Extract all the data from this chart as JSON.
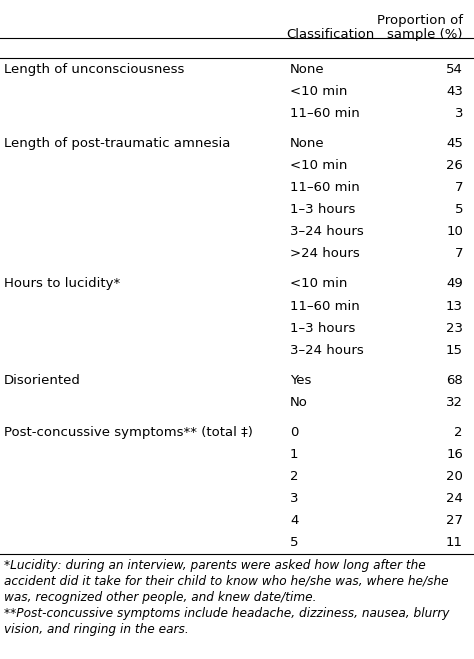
{
  "header_col2": "Classification",
  "header_col3_line1": "Proportion of",
  "header_col3_line2": "sample (%)",
  "rows": [
    {
      "label": "Length of unconsciousness",
      "classification": "None",
      "value": "54",
      "is_group_start": true
    },
    {
      "label": "",
      "classification": "<10 min",
      "value": "43",
      "is_group_start": false
    },
    {
      "label": "",
      "classification": "11–60 min",
      "value": "3",
      "is_group_start": false
    },
    {
      "label": "Length of post-traumatic amnesia",
      "classification": "None",
      "value": "45",
      "is_group_start": true
    },
    {
      "label": "",
      "classification": "<10 min",
      "value": "26",
      "is_group_start": false
    },
    {
      "label": "",
      "classification": "11–60 min",
      "value": "7",
      "is_group_start": false
    },
    {
      "label": "",
      "classification": "1–3 hours",
      "value": "5",
      "is_group_start": false
    },
    {
      "label": "",
      "classification": "3–24 hours",
      "value": "10",
      "is_group_start": false
    },
    {
      "label": "",
      "classification": ">24 hours",
      "value": "7",
      "is_group_start": false
    },
    {
      "label": "Hours to lucidity*",
      "classification": "<10 min",
      "value": "49",
      "is_group_start": true
    },
    {
      "label": "",
      "classification": "11–60 min",
      "value": "13",
      "is_group_start": false
    },
    {
      "label": "",
      "classification": "1–3 hours",
      "value": "23",
      "is_group_start": false
    },
    {
      "label": "",
      "classification": "3–24 hours",
      "value": "15",
      "is_group_start": false
    },
    {
      "label": "Disoriented",
      "classification": "Yes",
      "value": "68",
      "is_group_start": true
    },
    {
      "label": "",
      "classification": "No",
      "value": "32",
      "is_group_start": false
    },
    {
      "label": "Post-concussive symptoms** (total ‡)",
      "classification": "0",
      "value": "2",
      "is_group_start": true
    },
    {
      "label": "",
      "classification": "1",
      "value": "16",
      "is_group_start": false
    },
    {
      "label": "",
      "classification": "2",
      "value": "20",
      "is_group_start": false
    },
    {
      "label": "",
      "classification": "3",
      "value": "24",
      "is_group_start": false
    },
    {
      "label": "",
      "classification": "4",
      "value": "27",
      "is_group_start": false
    },
    {
      "label": "",
      "classification": "5",
      "value": "11",
      "is_group_start": false
    }
  ],
  "footnote1_lines": [
    "*Lucidity: during an interview, parents were asked how long after the",
    "accident did it take for their child to know who he/she was, where he/she",
    "was, recognized other people, and knew date/time."
  ],
  "footnote2_lines": [
    "**Post-concussive symptoms include headache, dizziness, nausea, blurry",
    "vision, and ringing in the ears."
  ],
  "bg_color": "#ffffff",
  "text_color": "#000000",
  "font_size": 9.5
}
